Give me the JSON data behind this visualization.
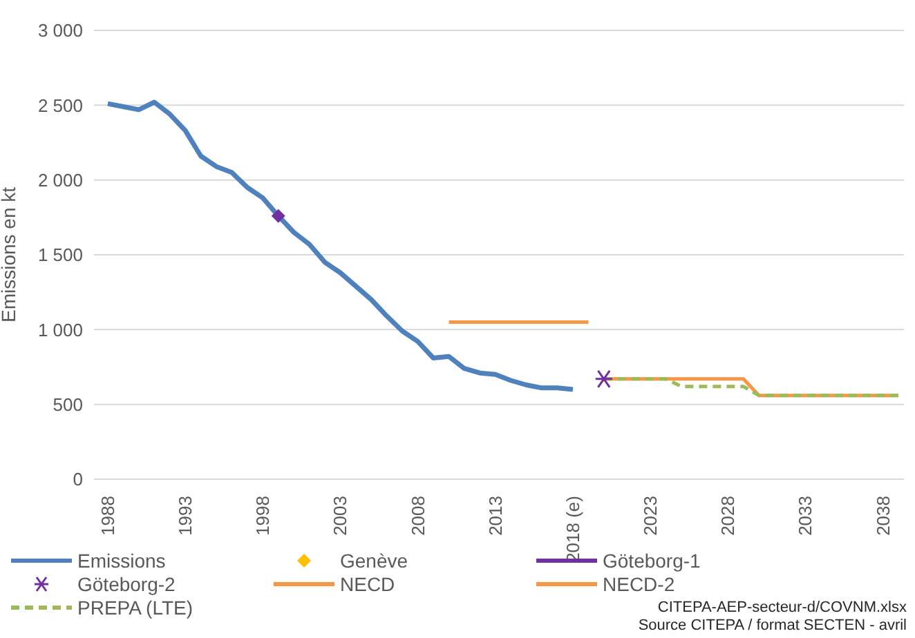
{
  "chart_data": {
    "type": "line",
    "ylabel": "Emissions en kt",
    "categories": [
      "1988",
      null,
      null,
      null,
      null,
      "1993",
      null,
      null,
      null,
      null,
      "1998",
      null,
      null,
      null,
      null,
      "2003",
      null,
      null,
      null,
      null,
      "2008",
      null,
      null,
      null,
      null,
      "2013",
      null,
      null,
      null,
      null,
      "2018 (e)",
      null,
      null,
      null,
      null,
      "2023",
      null,
      null,
      null,
      null,
      "2028",
      null,
      null,
      null,
      null,
      "2033",
      null,
      null,
      null,
      null,
      "2038",
      null
    ],
    "series": [
      {
        "name": "Emissions",
        "color": "#4f81bd",
        "marker": "none",
        "line_style": "solid",
        "values": [
          2510,
          2490,
          2470,
          2520,
          2440,
          2330,
          2160,
          2090,
          2050,
          1950,
          1880,
          1760,
          1650,
          1570,
          1450,
          1380,
          1290,
          1200,
          1090,
          990,
          920,
          810,
          820,
          740,
          710,
          700,
          660,
          630,
          610,
          610,
          600,
          null,
          null,
          null,
          null,
          null,
          null,
          null,
          null,
          null,
          null,
          null,
          null,
          null,
          null,
          null,
          null,
          null,
          null,
          null,
          null,
          null
        ]
      },
      {
        "name": "Genève",
        "type": "scatter",
        "color": "#ffc000",
        "marker": "diamond",
        "values": [
          null,
          null,
          null,
          null,
          null,
          null,
          null,
          null,
          null,
          null,
          null,
          null,
          null,
          null,
          null,
          null,
          null,
          null,
          null,
          null,
          null,
          null,
          null,
          null,
          null,
          null,
          null,
          null,
          null,
          null,
          null,
          null,
          null,
          null,
          null,
          null,
          null,
          null,
          null,
          null,
          null,
          null,
          null,
          null,
          null,
          null,
          null,
          null,
          null,
          null,
          null,
          null
        ]
      },
      {
        "name": "Göteborg-1",
        "color": "#7030a0",
        "marker": "diamond",
        "line_style": "solid",
        "values": [
          null,
          null,
          null,
          null,
          null,
          null,
          null,
          null,
          null,
          null,
          null,
          1760,
          null,
          null,
          null,
          null,
          null,
          null,
          null,
          null,
          null,
          null,
          null,
          null,
          null,
          null,
          null,
          null,
          null,
          null,
          null,
          null,
          null,
          null,
          null,
          null,
          null,
          null,
          null,
          null,
          null,
          null,
          null,
          null,
          null,
          null,
          null,
          null,
          null,
          null,
          null,
          null
        ]
      },
      {
        "name": "Göteborg-2",
        "type": "scatter",
        "color": "#7030a0",
        "marker": "cross",
        "values": [
          null,
          null,
          null,
          null,
          null,
          null,
          null,
          null,
          null,
          null,
          null,
          null,
          null,
          null,
          null,
          null,
          null,
          null,
          null,
          null,
          null,
          null,
          null,
          null,
          null,
          null,
          null,
          null,
          null,
          null,
          null,
          null,
          670,
          null,
          null,
          null,
          null,
          null,
          null,
          null,
          null,
          null,
          null,
          null,
          null,
          null,
          null,
          null,
          null,
          null,
          null,
          null
        ]
      },
      {
        "name": "NECD",
        "color": "#f79646",
        "marker": "none",
        "line_style": "solid",
        "values": [
          null,
          null,
          null,
          null,
          null,
          null,
          null,
          null,
          null,
          null,
          null,
          null,
          null,
          null,
          null,
          null,
          null,
          null,
          null,
          null,
          null,
          null,
          1050,
          1050,
          1050,
          1050,
          1050,
          1050,
          1050,
          1050,
          1050,
          1050,
          null,
          null,
          null,
          null,
          null,
          null,
          null,
          null,
          null,
          null,
          null,
          null,
          null,
          null,
          null,
          null,
          null,
          null,
          null,
          null
        ]
      },
      {
        "name": "NECD-2",
        "color": "#f79646",
        "marker": "none",
        "line_style": "solid",
        "values": [
          null,
          null,
          null,
          null,
          null,
          null,
          null,
          null,
          null,
          null,
          null,
          null,
          null,
          null,
          null,
          null,
          null,
          null,
          null,
          null,
          null,
          null,
          null,
          null,
          null,
          null,
          null,
          null,
          null,
          null,
          null,
          null,
          670,
          670,
          670,
          670,
          670,
          670,
          670,
          670,
          670,
          670,
          560,
          560,
          560,
          560,
          560,
          560,
          560,
          560,
          560,
          560
        ]
      },
      {
        "name": "PREPA (LTE)",
        "color": "#9bbb59",
        "marker": "none",
        "line_style": "dashed",
        "values": [
          null,
          null,
          null,
          null,
          null,
          null,
          null,
          null,
          null,
          null,
          null,
          null,
          null,
          null,
          null,
          null,
          null,
          null,
          null,
          null,
          null,
          null,
          null,
          null,
          null,
          null,
          null,
          null,
          null,
          null,
          null,
          null,
          670,
          670,
          670,
          670,
          670,
          620,
          620,
          620,
          620,
          620,
          560,
          560,
          560,
          560,
          560,
          560,
          560,
          560,
          560,
          560
        ]
      }
    ],
    "ylim": [
      0,
      3000
    ],
    "yticks": [
      0,
      500,
      {
        "value": 1000,
        "label": "1 000"
      },
      {
        "value": 1500,
        "label": "1 500"
      },
      {
        "value": 2000,
        "label": "2 000"
      },
      {
        "value": 2500,
        "label": "2 500"
      },
      {
        "value": 3000,
        "label": "3 000"
      }
    ],
    "grid": "y",
    "legend": "bottom",
    "annotations": [
      "CITEPA-AEP-secteur-d/COVNM.xlsx",
      "Source CITEPA / format SECTEN - avril"
    ]
  }
}
